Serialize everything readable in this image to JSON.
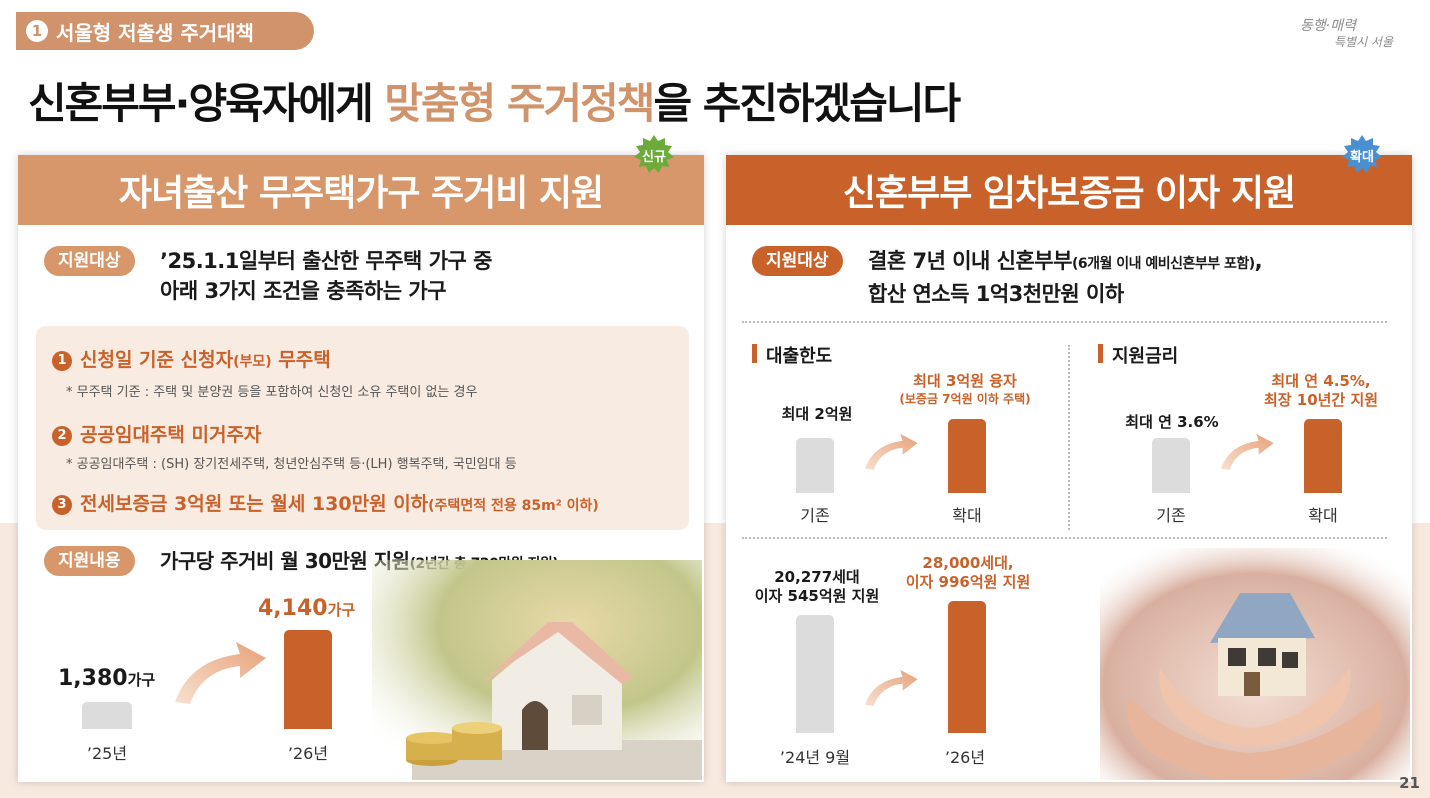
{
  "section_tag": {
    "number": "1",
    "label": "서울형 저출생 주거대책"
  },
  "logo": {
    "line1": "동행·매력",
    "line2": "특별시 서울"
  },
  "headline": {
    "before": "신혼부부·양육자에게 ",
    "highlight": "맞춤형 주거정책",
    "after": "을 추진하겠습니다"
  },
  "left": {
    "title": "자녀출산 무주택가구 주거비 지원",
    "badge": "신규",
    "target_label": "지원대상",
    "target_line1": "’25.1.1일부터 출산한 무주택 가구 중",
    "target_line2": "아래 3가지 조건을 충족하는 가구",
    "conditions": [
      {
        "num": "1",
        "text": "신청일 기준 신청자",
        "paren": "(부모)",
        "tail": " 무주택",
        "note": "* 무주택 기준 : 주택 및 분양권 등을 포함하여 신청인 소유 주택이 없는 경우"
      },
      {
        "num": "2",
        "text": "공공임대주택 미거주자",
        "paren": "",
        "tail": "",
        "note": "* 공공임대주택 : (SH) 장기전세주택, 청년안심주택 등·(LH) 행복주택, 국민임대 등"
      },
      {
        "num": "3",
        "text": "전세보증금 3억원 또는 월세 130만원 이하",
        "paren": "(주택면적 전용 85m² 이하)",
        "tail": "",
        "note": ""
      }
    ],
    "content_label": "지원내용",
    "content_main": "가구당 주거비 월 30만원 지원",
    "content_paren": "(2년간 총 720만원 지원)",
    "chart": {
      "before_value": "1,380",
      "before_unit": "가구",
      "before_cap": "’25년",
      "after_value": "4,140",
      "after_unit": "가구",
      "after_cap": "’26년"
    }
  },
  "right": {
    "title": "신혼부부 임차보증금 이자 지원",
    "badge": "확대",
    "target_label": "지원대상",
    "target_main": "결혼 7년 이내 신혼부부",
    "target_paren": "(6개월 이내 예비신혼부부 포함)",
    "target_comma": ",",
    "target_line2": "합산 연소득 1억3천만원 이하",
    "loan": {
      "section": "대출한도",
      "before_label": "최대 2억원",
      "after_label1": "최대 3억원 융자",
      "after_label2": "(보증금 7억원 이하 주택)",
      "before_cap": "기존",
      "after_cap": "확대"
    },
    "rate": {
      "section": "지원금리",
      "before_label": "최대 연 3.6%",
      "after_label1": "최대 연 4.5%,",
      "after_label2": "최장 10년간 지원",
      "before_cap": "기존",
      "after_cap": "확대"
    },
    "households": {
      "before_label1": "20,277세대",
      "before_label2": "이자 545억원 지원",
      "after_label1": "28,000세대,",
      "after_label2": "이자 996억원 지원",
      "before_cap": "’24년 9월",
      "after_cap": "’26년"
    }
  },
  "page_number": "21",
  "colors": {
    "accent_light": "#d8976b",
    "accent_dark": "#c9622a",
    "band": "#f8e9df",
    "bar_gray": "#dcdcdc"
  }
}
